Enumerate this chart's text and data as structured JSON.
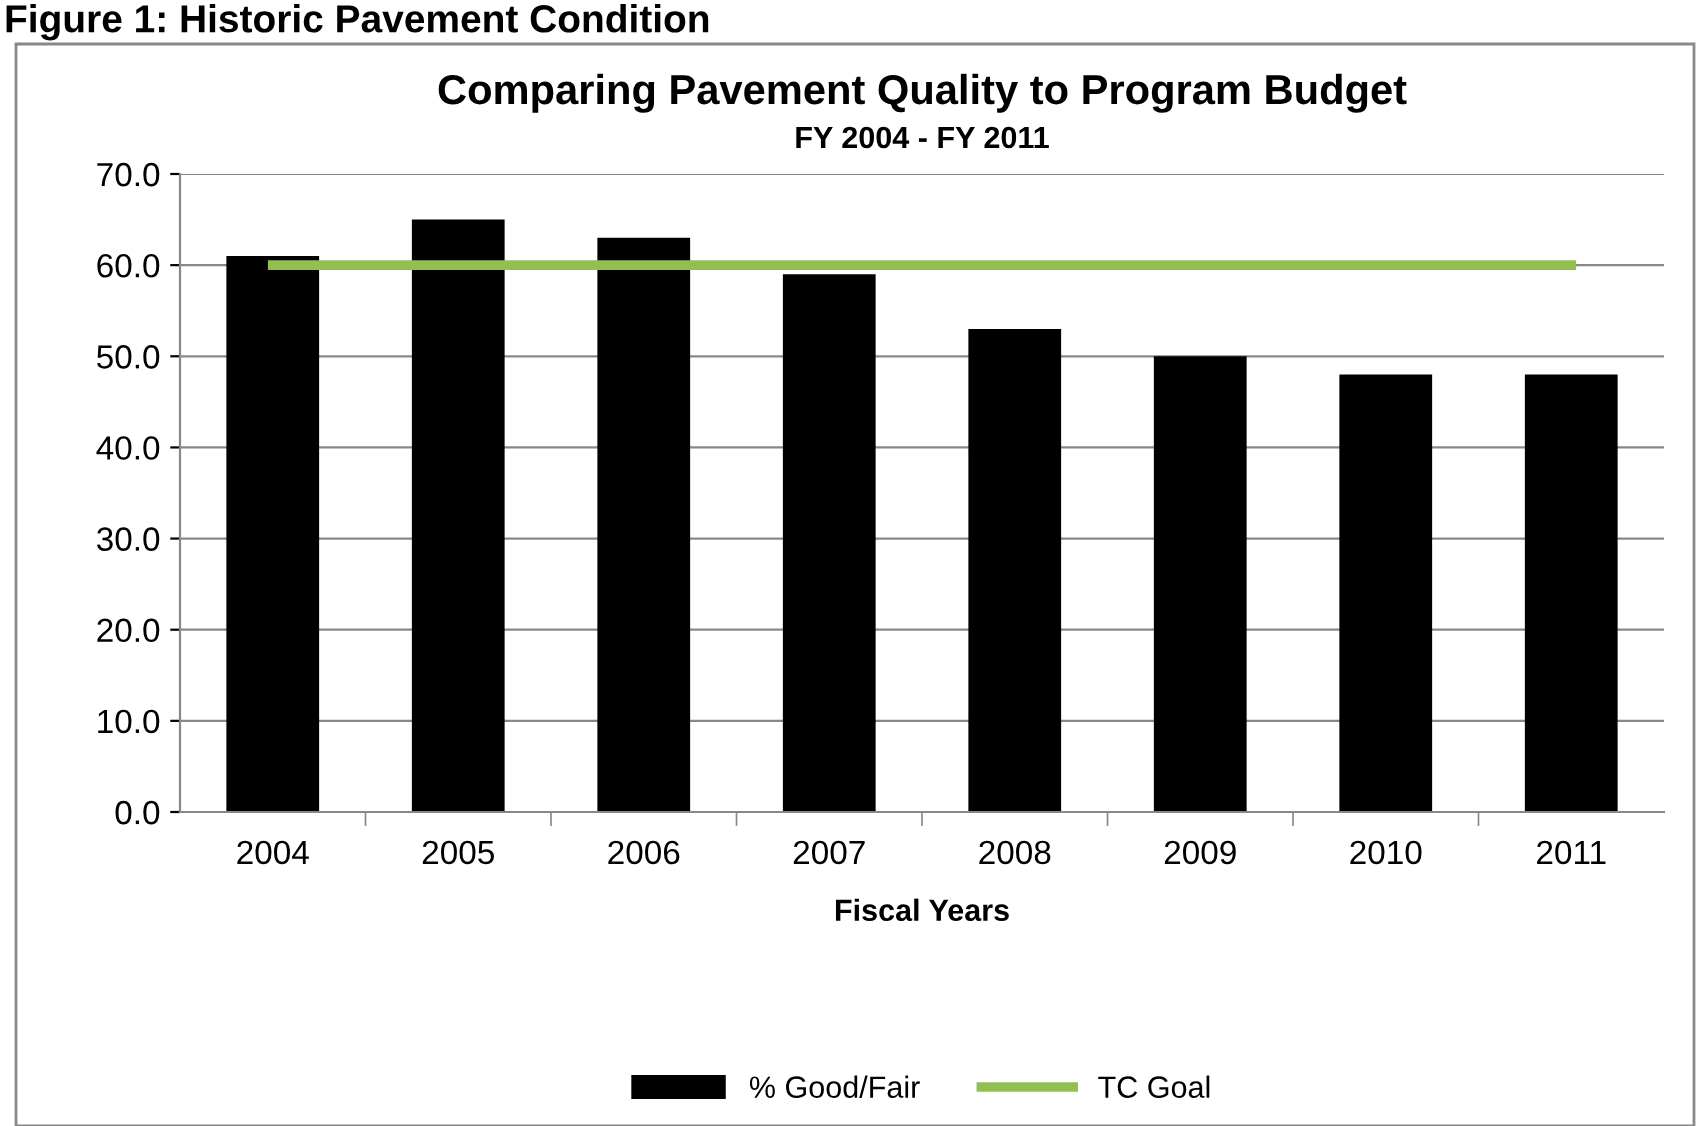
{
  "chart_data": {
    "type": "bar",
    "title": "Comparing Pavement Quality to Program Budget",
    "subtitle": "FY 2004 - FY 2011",
    "xlabel": "Fiscal Years",
    "annotations": [
      "Figure 1: Historic Pavement Condition"
    ],
    "categories": [
      "2004",
      "2005",
      "2006",
      "2007",
      "2008",
      "2009",
      "2010",
      "2011"
    ],
    "series": [
      {
        "name": "% Good/Fair",
        "color": "#000000",
        "values": [
          61,
          65,
          63,
          59,
          53,
          50,
          48,
          48
        ]
      },
      {
        "name": "TC Goal",
        "type": "line",
        "color": "#92c050",
        "values": [
          60,
          60,
          60,
          60,
          60,
          60,
          60,
          60
        ]
      }
    ],
    "ylim": [
      0,
      70
    ],
    "yticks": [
      {
        "value": 0,
        "label": "0.0"
      },
      {
        "value": 10,
        "label": "10.0"
      },
      {
        "value": 20,
        "label": "20.0"
      },
      {
        "value": 30,
        "label": "30.0"
      },
      {
        "value": 40,
        "label": "40.0"
      },
      {
        "value": 50,
        "label": "50.0"
      },
      {
        "value": 60,
        "label": "60.0"
      },
      {
        "value": 70,
        "label": "70.0"
      }
    ],
    "grid": "y",
    "legend": "bottom",
    "marker": "none"
  }
}
